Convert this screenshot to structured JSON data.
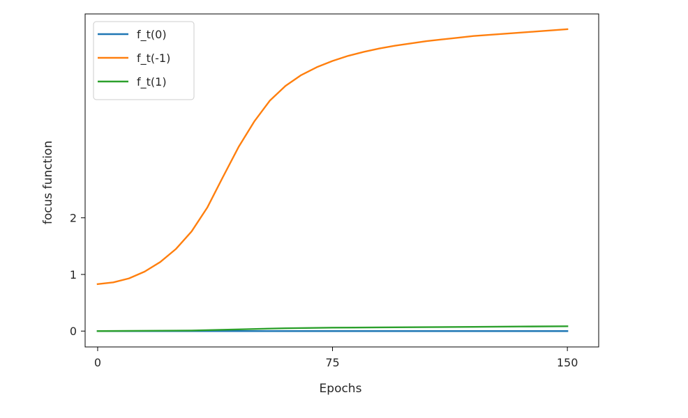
{
  "chart_data": {
    "type": "line",
    "title": "",
    "xlabel": "Epochs",
    "ylabel": "focus function",
    "xlim": [
      -4,
      160
    ],
    "ylim": [
      -0.28,
      5.6
    ],
    "xticks": [
      0,
      75,
      150
    ],
    "yticks": [
      0,
      1,
      2
    ],
    "grid": false,
    "legend_position": "top-left",
    "series": [
      {
        "name": "f_t(0)",
        "color": "#1f77b4",
        "x": [
          0,
          20,
          40,
          60,
          80,
          100,
          120,
          150
        ],
        "y": [
          0.0,
          0.0,
          0.0,
          0.0,
          0.0,
          0.0,
          0.0,
          0.0
        ]
      },
      {
        "name": "f_t(-1)",
        "color": "#ff7f0e",
        "x": [
          0,
          5,
          10,
          15,
          20,
          25,
          30,
          35,
          40,
          45,
          50,
          55,
          60,
          65,
          70,
          75,
          80,
          85,
          90,
          95,
          100,
          105,
          110,
          115,
          120,
          125,
          130,
          135,
          140,
          145,
          150
        ],
        "y": [
          0.83,
          0.86,
          0.93,
          1.05,
          1.22,
          1.45,
          1.76,
          2.18,
          2.72,
          3.25,
          3.7,
          4.07,
          4.33,
          4.52,
          4.66,
          4.77,
          4.86,
          4.93,
          4.99,
          5.04,
          5.08,
          5.12,
          5.15,
          5.18,
          5.21,
          5.23,
          5.25,
          5.27,
          5.29,
          5.31,
          5.33
        ]
      },
      {
        "name": "f_t(1)",
        "color": "#2ca02c",
        "x": [
          0,
          15,
          30,
          45,
          60,
          75,
          90,
          105,
          120,
          135,
          150
        ],
        "y": [
          0.0,
          0.005,
          0.01,
          0.03,
          0.05,
          0.06,
          0.065,
          0.07,
          0.075,
          0.08,
          0.085
        ]
      }
    ]
  }
}
